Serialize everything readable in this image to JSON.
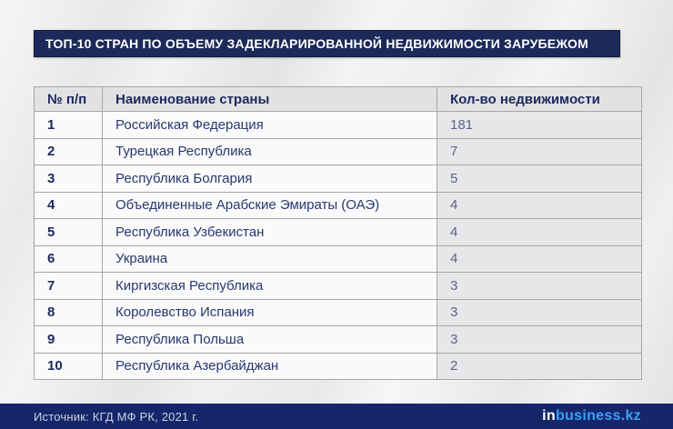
{
  "page": {
    "title": "ТОП-10 СТРАН ПО ОБЪЕМУ ЗАДЕКЛАРИРОВАННОЙ НЕДВИЖИМОСТИ ЗАРУБЕЖОМ"
  },
  "table": {
    "columns": [
      "№ п/п",
      "Наименование страны",
      "Кол-во недвижимости"
    ],
    "rows": [
      {
        "num": "1",
        "country": "Российская Федерация",
        "count": "181"
      },
      {
        "num": "2",
        "country": "Турецкая Республика",
        "count": "7"
      },
      {
        "num": "3",
        "country": "Республика Болгария",
        "count": "5"
      },
      {
        "num": "4",
        "country": "Объединенные Арабские Эмираты (ОАЭ)",
        "count": "4"
      },
      {
        "num": "5",
        "country": "Республика Узбекистан",
        "count": "4"
      },
      {
        "num": "6",
        "country": "Украина",
        "count": "4"
      },
      {
        "num": "7",
        "country": "Киргизская Республика",
        "count": "3"
      },
      {
        "num": "8",
        "country": "Королевство Испания",
        "count": "3"
      },
      {
        "num": "9",
        "country": "Республика Польша",
        "count": "3"
      },
      {
        "num": "10",
        "country": "Республика Азербайджан",
        "count": "2"
      }
    ]
  },
  "footer": {
    "source": "Источник: КГД МФ РК, 2021 г.",
    "logo_prefix": "in",
    "logo_suffix": "business.kz"
  },
  "colors": {
    "title_navy": "#1b2a58",
    "footer_navy": "#15266a",
    "logo_blue": "#38a1f8",
    "header_bg": "#e2e2e4",
    "count_col_bg": "#e7e7e9",
    "count_text": "#56648e",
    "cell_text": "#27396e",
    "table_border": "#a6a6aa",
    "background": "#ebebeb"
  },
  "chart_data": {
    "type": "table",
    "title": "ТОП-10 СТРАН ПО ОБЪЕМУ ЗАДЕКЛАРИРОВАННОЙ НЕДВИЖИМОСТИ ЗАРУБЕЖОМ",
    "columns": [
      "№ п/п",
      "Наименование страны",
      "Кол-во недвижимости"
    ],
    "categories": [
      "Российская Федерация",
      "Турецкая Республика",
      "Республика Болгария",
      "Объединенные Арабские Эмираты (ОАЭ)",
      "Республика Узбекистан",
      "Украина",
      "Киргизская Республика",
      "Королевство Испания",
      "Республика Польша",
      "Республика Азербайджан"
    ],
    "values": [
      181,
      7,
      5,
      4,
      4,
      4,
      3,
      3,
      3,
      2
    ],
    "source": "Источник: КГД МФ РК, 2021 г."
  }
}
